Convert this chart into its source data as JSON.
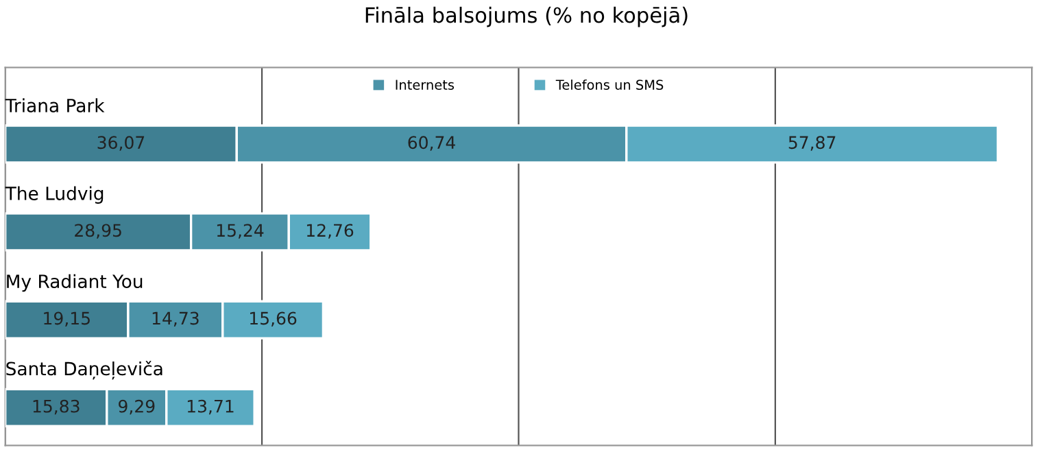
{
  "chart_data": {
    "type": "bar",
    "orientation": "horizontal",
    "stacked": true,
    "title": "Fināla balsojums (% no kopējā)",
    "categories": [
      "Triana Park",
      "The Ludvig",
      "My Radiant You",
      "Santa Daņeļeviča"
    ],
    "series": [
      {
        "color": "#3f7f92",
        "values": [
          36.07,
          28.95,
          19.15,
          15.83
        ],
        "value_labels": [
          "36,07",
          "28,95",
          "19,15",
          "15,83"
        ]
      },
      {
        "name": "Internets",
        "color": "#4b93a8",
        "values": [
          60.74,
          15.24,
          14.73,
          9.29
        ],
        "value_labels": [
          "60,74",
          "15,24",
          "14,73",
          "9,29"
        ]
      },
      {
        "name": "Telefons un SMS",
        "color": "#5aabc2",
        "values": [
          57.87,
          12.76,
          15.66,
          13.71
        ],
        "value_labels": [
          "57,87",
          "12,76",
          "15,66",
          "13,71"
        ]
      }
    ],
    "xlim": [
      0,
      160
    ],
    "xticks": [
      {
        "value": 0,
        "label": null
      },
      {
        "value": 40,
        "label": null
      },
      {
        "value": 80,
        "label": null
      },
      {
        "value": 120,
        "label": null
      },
      {
        "value": 160,
        "label": null
      }
    ],
    "grid": "x",
    "legend": "top"
  }
}
